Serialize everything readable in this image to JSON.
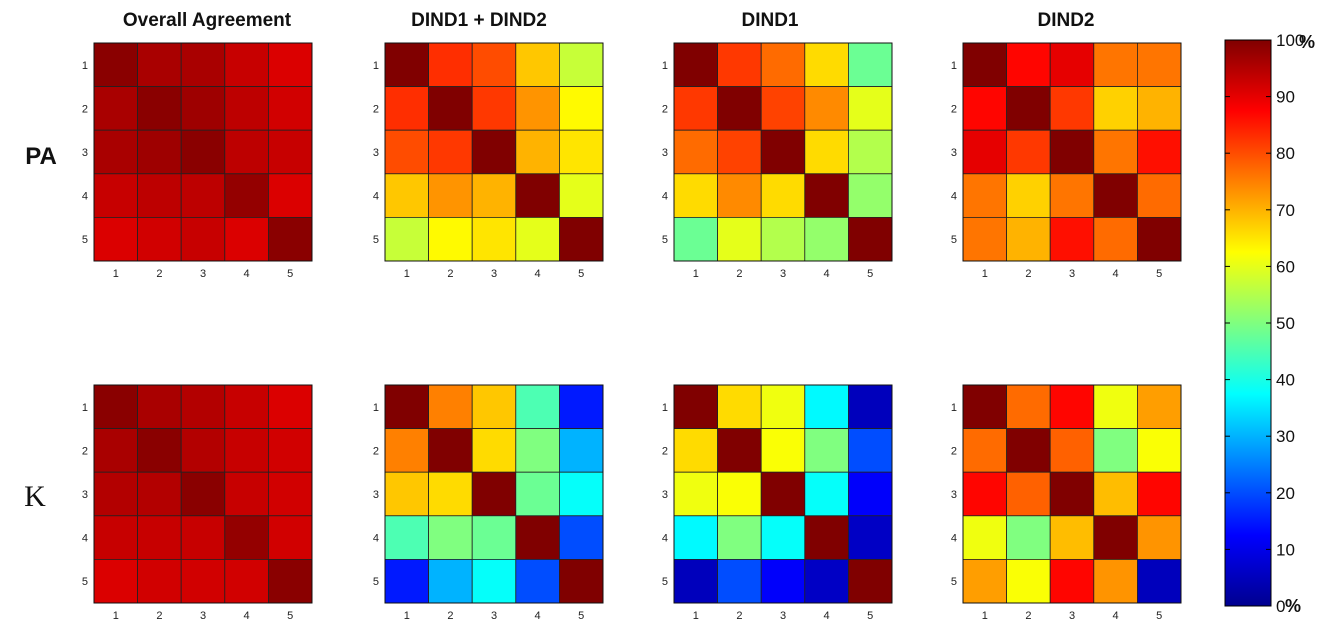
{
  "chart_data": {
    "type": "heatmap",
    "row_labels": [
      "PA",
      "K"
    ],
    "column_titles": [
      "Overall Agreement",
      "DIND1 + DIND2",
      "DIND1",
      "DIND2"
    ],
    "categories": [
      "1",
      "2",
      "3",
      "4",
      "5"
    ],
    "colorbar": {
      "colormap": "jet",
      "range": [
        0,
        100
      ],
      "ticks": [
        "0",
        "10",
        "20",
        "30",
        "40",
        "50",
        "60",
        "70",
        "80",
        "90",
        "100"
      ],
      "unit": "%"
    },
    "matrices": [
      {
        "row": "PA",
        "column": "Overall Agreement",
        "values": [
          [
            99,
            96,
            96,
            93,
            91
          ],
          [
            96,
            99,
            97,
            94,
            92
          ],
          [
            96,
            97,
            99,
            94,
            93
          ],
          [
            93,
            94,
            94,
            98,
            91
          ],
          [
            91,
            92,
            93,
            91,
            99
          ]
        ]
      },
      {
        "row": "PA",
        "column": "DIND1 + DIND2",
        "values": [
          [
            100,
            83,
            80,
            68,
            57
          ],
          [
            83,
            100,
            82,
            73,
            63
          ],
          [
            80,
            82,
            100,
            70,
            65
          ],
          [
            68,
            73,
            70,
            100,
            60
          ],
          [
            57,
            63,
            65,
            60,
            100
          ]
        ]
      },
      {
        "row": "PA",
        "column": "DIND1",
        "values": [
          [
            100,
            82,
            77,
            66,
            48
          ],
          [
            82,
            100,
            81,
            74,
            60
          ],
          [
            77,
            81,
            100,
            66,
            55
          ],
          [
            66,
            74,
            66,
            100,
            52
          ],
          [
            48,
            60,
            55,
            52,
            100
          ]
        ]
      },
      {
        "row": "PA",
        "column": "DIND2",
        "values": [
          [
            100,
            87,
            90,
            76,
            76
          ],
          [
            87,
            100,
            82,
            67,
            70
          ],
          [
            90,
            82,
            100,
            76,
            86
          ],
          [
            76,
            67,
            76,
            100,
            77
          ],
          [
            76,
            70,
            86,
            77,
            100
          ]
        ]
      },
      {
        "row": "K",
        "column": "Overall Agreement",
        "values": [
          [
            99,
            96,
            95,
            93,
            91
          ],
          [
            96,
            99,
            95,
            93,
            92
          ],
          [
            95,
            95,
            99,
            93,
            92
          ],
          [
            93,
            93,
            93,
            98,
            92
          ],
          [
            91,
            92,
            92,
            92,
            99
          ]
        ]
      },
      {
        "row": "K",
        "column": "DIND1 + DIND2",
        "values": [
          [
            100,
            75,
            68,
            45,
            15
          ],
          [
            75,
            100,
            66,
            50,
            30
          ],
          [
            68,
            66,
            100,
            48,
            38
          ],
          [
            45,
            50,
            48,
            100,
            20
          ],
          [
            15,
            30,
            38,
            20,
            100
          ]
        ]
      },
      {
        "row": "K",
        "column": "DIND1",
        "values": [
          [
            100,
            66,
            61,
            37,
            5
          ],
          [
            66,
            100,
            62,
            50,
            20
          ],
          [
            61,
            62,
            100,
            38,
            12
          ],
          [
            37,
            50,
            38,
            100,
            6
          ],
          [
            5,
            20,
            12,
            6,
            100
          ]
        ]
      },
      {
        "row": "K",
        "column": "DIND2",
        "values": [
          [
            100,
            77,
            87,
            61,
            72
          ],
          [
            77,
            100,
            78,
            50,
            62
          ],
          [
            87,
            78,
            100,
            69,
            87
          ],
          [
            61,
            50,
            69,
            100,
            73
          ],
          [
            72,
            62,
            87,
            73,
            5
          ]
        ]
      }
    ]
  }
}
